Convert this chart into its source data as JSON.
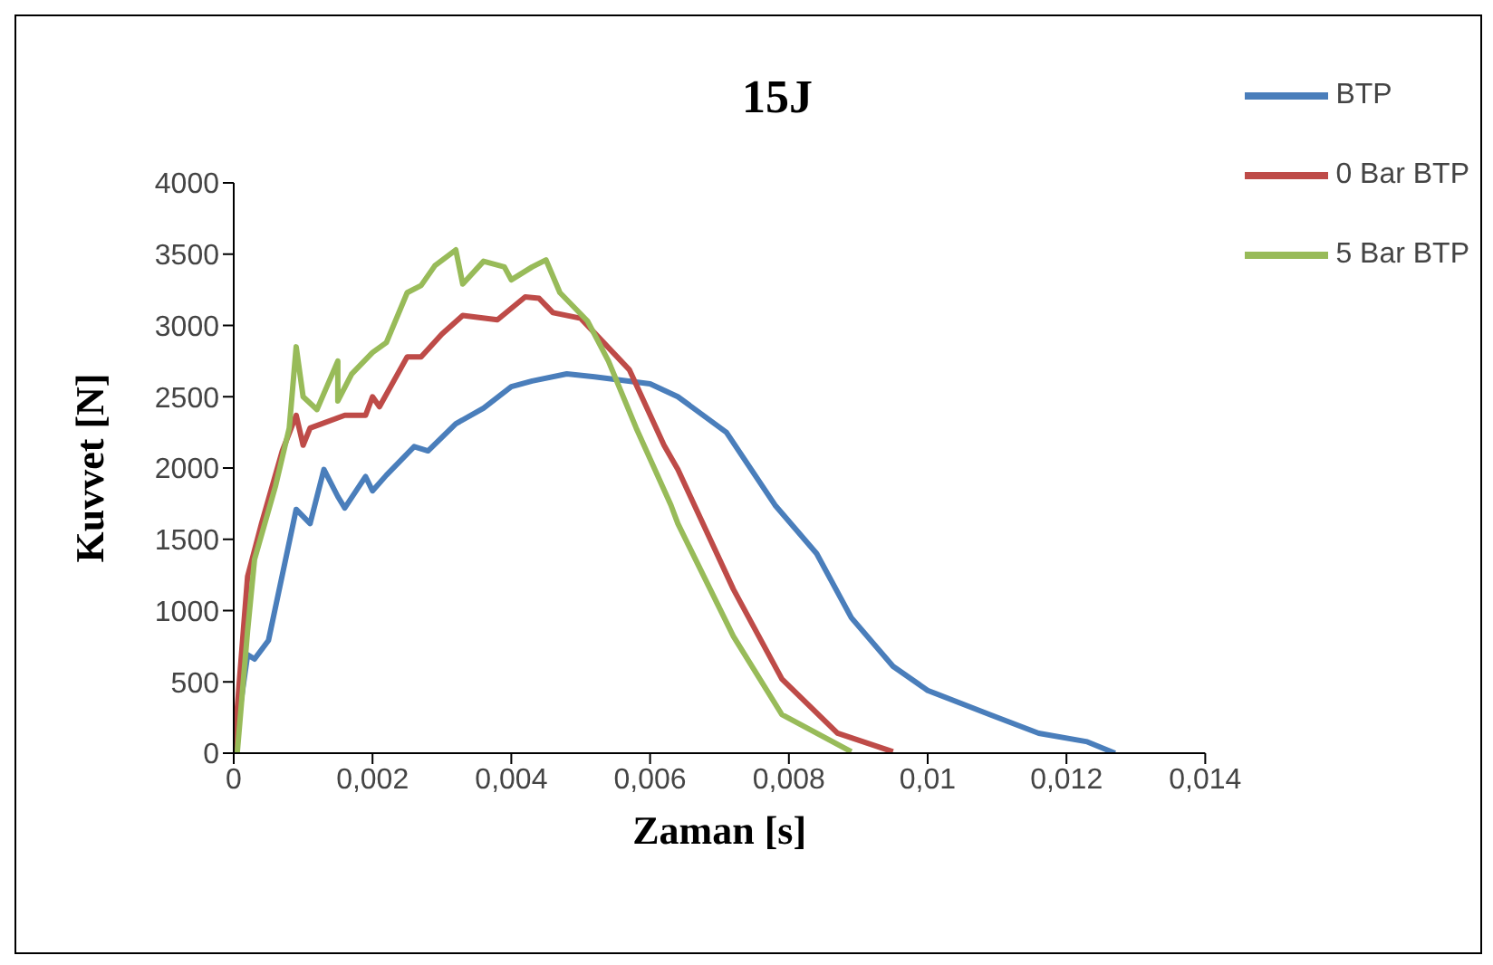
{
  "chart_data": {
    "type": "line",
    "title": "15J",
    "xlabel": "Zaman [s]",
    "ylabel": "Kuvvet [N]",
    "xlim": [
      0,
      0.014
    ],
    "xticks": [
      0,
      {
        "value": 0.002,
        "label": "0,002"
      },
      {
        "value": 0.004,
        "label": "0,004"
      },
      {
        "value": 0.006,
        "label": "0,006"
      },
      {
        "value": 0.008,
        "label": "0,008"
      },
      {
        "value": 0.01,
        "label": "0,01"
      },
      {
        "value": 0.012,
        "label": "0,012"
      },
      {
        "value": 0.014,
        "label": "0,014"
      }
    ],
    "ylim": [
      0,
      4000
    ],
    "yticks": [
      0,
      500,
      1000,
      1500,
      2000,
      2500,
      3000,
      3500,
      4000
    ],
    "grid": false,
    "legend": "top right",
    "marker": "none",
    "line_style": "solid",
    "series": [
      {
        "name": "BTP",
        "color": "#4a7ebb",
        "x": [
          0,
          0.0002,
          0.0003,
          0.0005,
          0.0009,
          0.0011,
          0.0013,
          0.0015,
          0.0016,
          0.0019,
          0.002,
          0.0022,
          0.0026,
          0.0028,
          0.0032,
          0.0036,
          0.004,
          0.0043,
          0.0048,
          0.0052,
          0.006,
          0.0064,
          0.0071,
          0.0078,
          0.0084,
          0.0089,
          0.0095,
          0.01,
          0.0109,
          0.0116,
          0.0123,
          0.0127
        ],
        "values": [
          0,
          690,
          660,
          790,
          1710,
          1610,
          1990,
          1800,
          1720,
          1940,
          1840,
          1950,
          2150,
          2120,
          2310,
          2420,
          2570,
          2610,
          2660,
          2640,
          2590,
          2500,
          2250,
          1740,
          1400,
          950,
          610,
          440,
          270,
          140,
          80,
          0
        ]
      },
      {
        "name": "0 Bar BTP",
        "color": "#be4b48",
        "x": [
          0,
          0.0002,
          0.0004,
          0.0007,
          0.0009,
          0.001,
          0.0011,
          0.0016,
          0.0019,
          0.002,
          0.0021,
          0.0025,
          0.0027,
          0.003,
          0.0033,
          0.0038,
          0.0042,
          0.0044,
          0.0046,
          0.005,
          0.0057,
          0.0062,
          0.0064,
          0.0072,
          0.0079,
          0.0087,
          0.0095
        ],
        "values": [
          0,
          1240,
          1610,
          2120,
          2370,
          2160,
          2280,
          2370,
          2370,
          2500,
          2430,
          2780,
          2780,
          2940,
          3070,
          3040,
          3200,
          3190,
          3090,
          3050,
          2690,
          2160,
          1990,
          1150,
          520,
          140,
          10
        ]
      },
      {
        "name": "5 Bar BTP",
        "color": "#98bb59",
        "x": [
          5e-05,
          0.0002,
          0.0003,
          0.0006,
          0.0008,
          0.0009,
          0.001,
          0.0012,
          0.0015,
          0.0015,
          0.0017,
          0.002,
          0.0022,
          0.0025,
          0.0027,
          0.0029,
          0.0032,
          0.0033,
          0.0036,
          0.0039,
          0.004,
          0.0043,
          0.0045,
          0.0047,
          0.0051,
          0.0054,
          0.0058,
          0.0063,
          0.0064,
          0.0072,
          0.0079,
          0.0089
        ],
        "values": [
          0,
          860,
          1360,
          1870,
          2280,
          2850,
          2500,
          2410,
          2750,
          2470,
          2660,
          2810,
          2880,
          3230,
          3280,
          3420,
          3530,
          3290,
          3450,
          3410,
          3320,
          3410,
          3460,
          3230,
          3030,
          2750,
          2280,
          1740,
          1610,
          820,
          270,
          10
        ]
      }
    ]
  }
}
